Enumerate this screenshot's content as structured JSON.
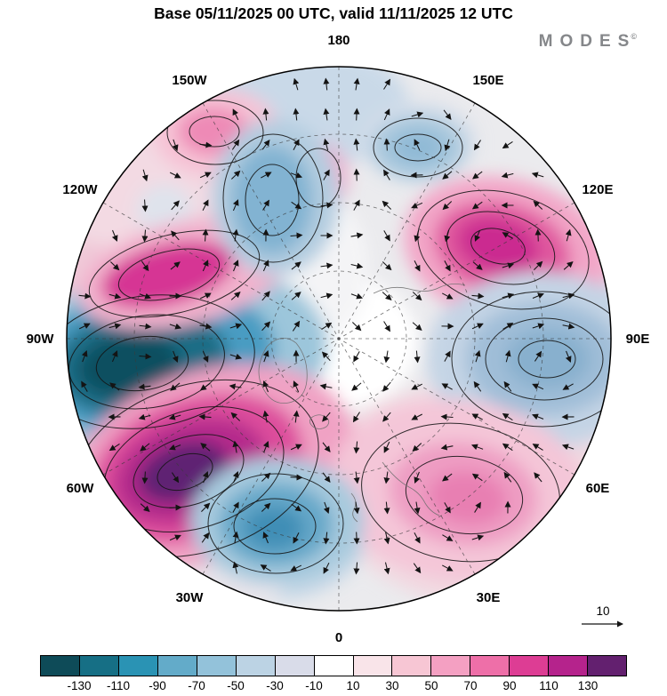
{
  "title": "Base 05/11/2025 00 UTC, valid 11/11/2025 12 UTC",
  "logo": {
    "text": "MODES",
    "mark": "©"
  },
  "map": {
    "longitude_labels": [
      "180",
      "150E",
      "120E",
      "90E",
      "60E",
      "30E",
      "0",
      "30W",
      "60W",
      "90W",
      "120W",
      "150W"
    ]
  },
  "reference_arrow": {
    "label": "10"
  },
  "colorbar": {
    "tick_labels": [
      "-130",
      "-110",
      "-90",
      "-70",
      "-50",
      "-30",
      "-10",
      "10",
      "30",
      "50",
      "70",
      "90",
      "110",
      "130"
    ],
    "colors": [
      "#0e4b58",
      "#166f85",
      "#2a93b4",
      "#63abc9",
      "#93c2da",
      "#bcd3e4",
      "#d9dce9",
      "#ffffff",
      "#f9e4e9",
      "#f7c6d4",
      "#f4a0c2",
      "#ee6fa8",
      "#dd3d94",
      "#b5238c",
      "#63206f"
    ]
  },
  "chart_data": {
    "type": "heatmap",
    "title": "Base 05/11/2025 00 UTC, valid 11/11/2025 12 UTC",
    "projection": "north-polar stereographic, 180 at top, 0 at bottom, meridian labels every 30 degrees",
    "field": "filled anomaly field with black contour lines and wind-vector arrows",
    "scale_boundaries": [
      -130,
      -110,
      -90,
      -70,
      -50,
      -30,
      -10,
      10,
      30,
      50,
      70,
      90,
      110,
      130
    ],
    "vector_reference_magnitude": 10,
    "anomaly_centers": [
      {
        "near": "90W mid-latitudes",
        "sign": "negative",
        "approx_extreme": -130
      },
      {
        "near": "60W mid-latitudes",
        "sign": "positive",
        "approx_extreme": 130
      },
      {
        "near": "105W subpolar",
        "sign": "positive",
        "approx_extreme": 90
      },
      {
        "near": "150W edge",
        "sign": "positive",
        "approx_extreme": 50
      },
      {
        "near": "170W near pole",
        "sign": "negative",
        "approx_extreme": -50
      },
      {
        "near": "180 subpolar",
        "sign": "positive",
        "approx_extreme": 70
      },
      {
        "near": "165E subpolar",
        "sign": "negative",
        "approx_extreme": -30
      },
      {
        "near": "120E mid-latitudes",
        "sign": "positive",
        "approx_extreme": 110
      },
      {
        "near": "90E mid-latitudes",
        "sign": "negative",
        "approx_extreme": -50
      },
      {
        "near": "45E mid-latitudes",
        "sign": "positive",
        "approx_extreme": 70
      },
      {
        "near": "15W mid-latitudes",
        "sign": "negative",
        "approx_extreme": -70
      }
    ],
    "legend_position": "bottom colorbar",
    "grid": "dashed latitude circles and meridians"
  }
}
